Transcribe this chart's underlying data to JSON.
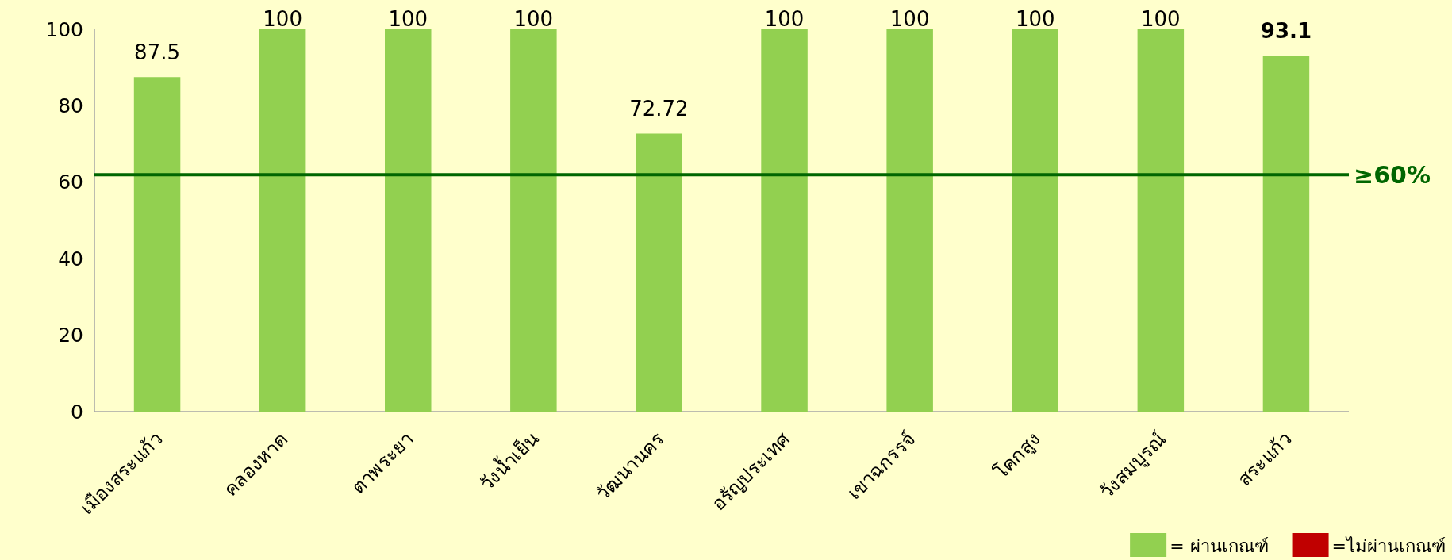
{
  "chart_data": {
    "type": "bar",
    "categories": [
      "เมืองสระแก้ว",
      "คลองหาด",
      "ตาพระยา",
      "วังน้ำเย็น",
      "วัฒนานคร",
      "อรัญประเทศ",
      "เขาฉกรรจ์",
      "โคกสูง",
      "วังสมบูรณ์",
      "สระแก้ว"
    ],
    "series": [
      {
        "name": "= ผ่านเกณฑ์",
        "color": "#92d050",
        "values": [
          87.5,
          100,
          100,
          100,
          72.72,
          100,
          100,
          100,
          100,
          93.1
        ]
      },
      {
        "name": "=ไม่ผ่านเกณฑ์",
        "color": "#c00000",
        "values": [
          null,
          null,
          null,
          null,
          null,
          null,
          null,
          null,
          null,
          null
        ]
      }
    ],
    "data_labels": true,
    "ylim": [
      0,
      100
    ],
    "yticks": [
      0,
      20,
      40,
      60,
      80,
      100
    ],
    "ref_lines": [
      {
        "axis": "y",
        "value": 62,
        "label": "≥60%",
        "color": "#006600"
      }
    ],
    "legend": "bottom right",
    "grid": false
  }
}
